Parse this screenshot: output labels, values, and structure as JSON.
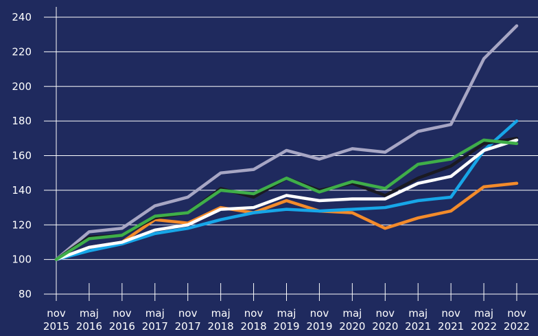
{
  "chart_data": {
    "type": "line",
    "categories": [
      "nov 2015",
      "maj 2016",
      "nov 2016",
      "maj 2017",
      "nov 2017",
      "maj 2018",
      "nov 2018",
      "maj 2019",
      "nov 2019",
      "maj 2020",
      "nov 2020",
      "maj 2021",
      "nov 2021",
      "maj 2022",
      "nov 2022"
    ],
    "series": [
      {
        "color": "#a7a6c4",
        "values": [
          100,
          116,
          118,
          131,
          136,
          150,
          152,
          163,
          158,
          164,
          162,
          174,
          178,
          216,
          235
        ]
      },
      {
        "color": "#f38b2b",
        "values": [
          100,
          107,
          110,
          123,
          121,
          130,
          127,
          134,
          128,
          127,
          118,
          124,
          128,
          142,
          144
        ]
      },
      {
        "color": "#17a6e8",
        "values": [
          100,
          105,
          109,
          115,
          118,
          123,
          127,
          129,
          128,
          129,
          130,
          134,
          136,
          163,
          180
        ]
      },
      {
        "color": "#1a1a22",
        "values": [
          100,
          113,
          114,
          124,
          127,
          141,
          136,
          147,
          140,
          144,
          137,
          147,
          154,
          167,
          170
        ]
      },
      {
        "color": "#ffffff",
        "values": [
          100,
          107,
          110,
          117,
          120,
          129,
          130,
          137,
          134,
          135,
          135,
          144,
          148,
          163,
          169
        ]
      },
      {
        "color": "#3fae49",
        "values": [
          100,
          112,
          114,
          125,
          127,
          140,
          138,
          147,
          139,
          145,
          141,
          155,
          158,
          169,
          167
        ]
      }
    ],
    "ylim": [
      80,
      240
    ],
    "yticks": [
      80,
      100,
      120,
      140,
      160,
      180,
      200,
      220,
      240
    ],
    "grid": true
  }
}
